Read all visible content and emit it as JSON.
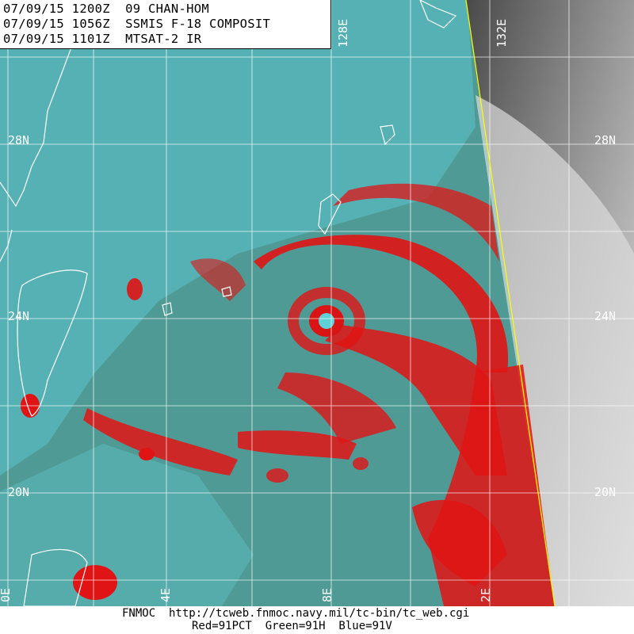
{
  "header": {
    "lines": [
      "07/09/15 1200Z  09 CHAN-HOM",
      "07/09/15 1056Z  SSMIS F-18 COMPOSIT",
      "07/09/15 1101Z  MTSAT-2 IR"
    ]
  },
  "grid": {
    "lat_labels": [
      "28N",
      "24N",
      "20N"
    ],
    "lon_labels": [
      "128E",
      "132E"
    ],
    "lon_edge_labels": [
      "0E",
      "4E",
      "8E",
      "2E"
    ]
  },
  "footer": {
    "line1": "FNMOC  http://tcweb.fnmoc.navy.mil/tc-bin/tc_web.cgi",
    "line2": "Red=91PCT  Green=91H  Blue=91V"
  },
  "colors": {
    "ocean": "#4f9a94",
    "cyan_cloud": "#5fd0d6",
    "convection": "#e01414",
    "ir_dark": "#5a5a5a",
    "ir_bright": "#e8e8e8",
    "gridline": "#ffffff",
    "swath_edge": "#ffff00"
  }
}
